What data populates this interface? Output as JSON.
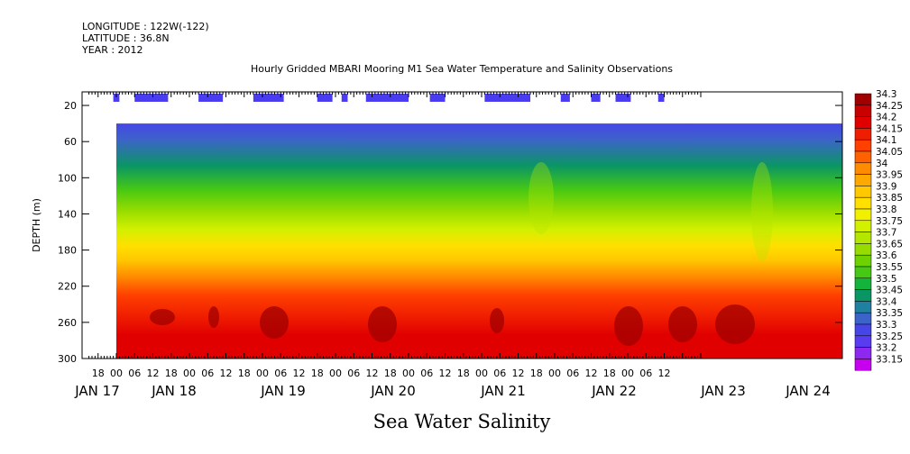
{
  "header": {
    "longitude": "LONGITUDE : 122W(-122)",
    "latitude": "LATITUDE : 36.8N",
    "year": "YEAR : 2012"
  },
  "chart_data": {
    "type": "heatmap",
    "title": "Hourly Gridded MBARI Mooring M1 Sea Water Temperature and Salinity Observations",
    "ylabel": "DEPTH (m)",
    "xlabel": "Sea Water Salinity",
    "y_ticks": [
      "20",
      "60",
      "100",
      "140",
      "180",
      "220",
      "260",
      "300"
    ],
    "ylim": [
      300,
      5
    ],
    "hour_ticks": [
      "18",
      "00",
      "06",
      "12",
      "18",
      "00",
      "06",
      "12",
      "18",
      "00",
      "06",
      "12",
      "18",
      "00",
      "06",
      "12",
      "18",
      "00",
      "06",
      "12",
      "18",
      "00",
      "06",
      "12",
      "18",
      "00",
      "06",
      "12",
      "18",
      "00",
      "06",
      "12"
    ],
    "date_labels": [
      "JAN 17",
      "JAN 18",
      "JAN 19",
      "JAN 20",
      "JAN 21",
      "JAN 22",
      "JAN 23",
      "JAN 24"
    ],
    "xlim_hours": [
      -9,
      12.7
    ],
    "data_start_hour": 0,
    "data_top_depth": 40,
    "colorbar": {
      "levels": [
        "34.3",
        "34.25",
        "34.2",
        "34.15",
        "34.1",
        "34.05",
        "34",
        "33.95",
        "33.9",
        "33.85",
        "33.8",
        "33.75",
        "33.7",
        "33.65",
        "33.6",
        "33.55",
        "33.5",
        "33.45",
        "33.4",
        "33.35",
        "33.3",
        "33.25",
        "33.2",
        "33.15"
      ],
      "colors": [
        "#a00000",
        "#c80000",
        "#e00000",
        "#f01e00",
        "#ff4000",
        "#ff6000",
        "#ff8c00",
        "#ffa800",
        "#ffc800",
        "#ffe000",
        "#f0f000",
        "#d2f000",
        "#b4e600",
        "#96dc00",
        "#6ed200",
        "#46c814",
        "#14b43c",
        "#0a9664",
        "#2080a0",
        "#3c64c8",
        "#4646e6",
        "#5a3cf0",
        "#8c28f0",
        "#c800f0"
      ]
    },
    "surface_obs_segments": [
      [
        -1,
        1
      ],
      [
        6,
        17
      ],
      [
        27,
        35
      ],
      [
        45,
        55
      ],
      [
        66,
        71
      ],
      [
        74,
        76
      ],
      [
        82,
        96
      ],
      [
        103,
        108
      ],
      [
        121,
        136
      ],
      [
        146,
        149
      ],
      [
        156,
        159
      ],
      [
        164,
        169
      ],
      [
        178,
        180
      ]
    ]
  }
}
